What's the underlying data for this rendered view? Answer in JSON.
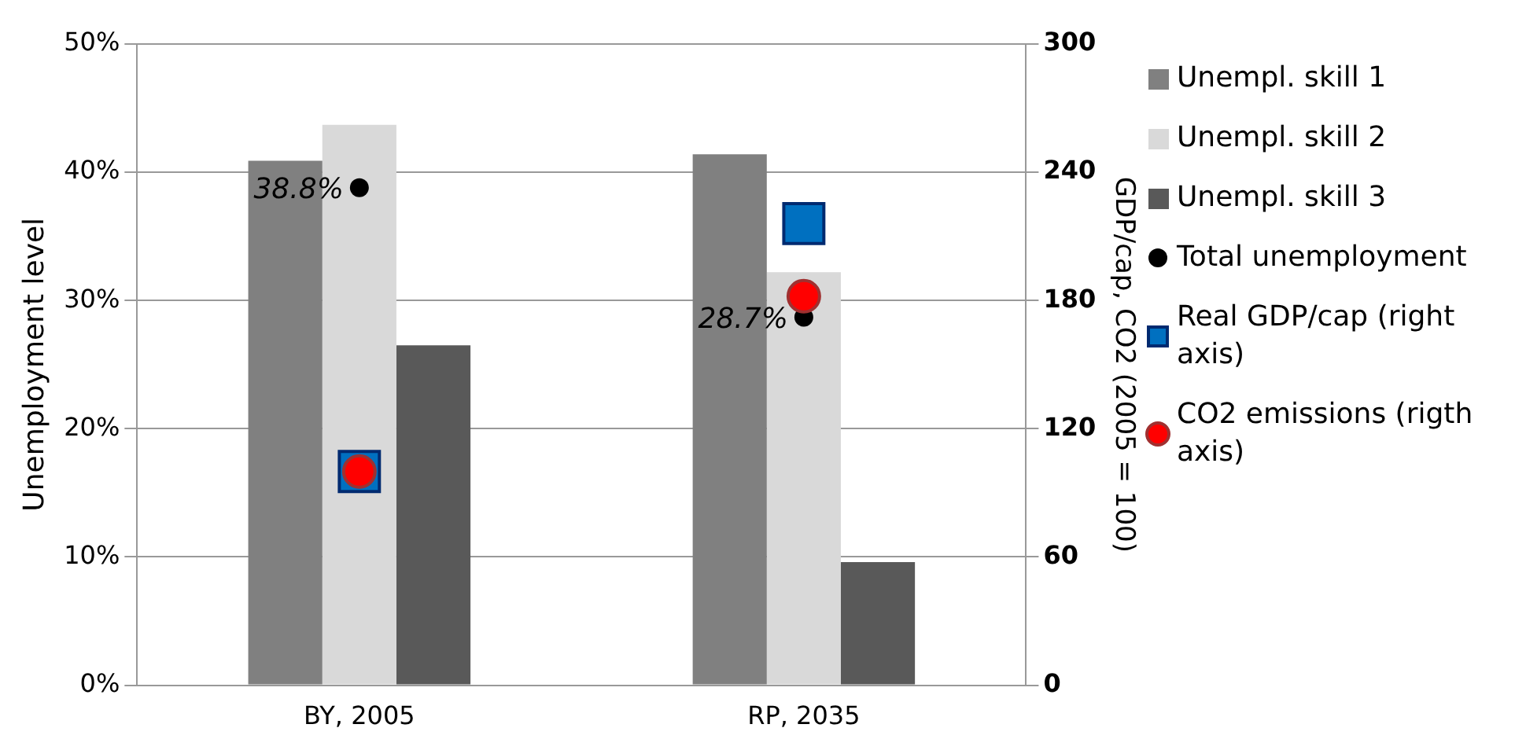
{
  "chart_data": {
    "type": "bar",
    "ylabel": "Unemployment level",
    "y2label": "GDP/cap, CO2 (2005 = 100)",
    "categories": [
      "BY, 2005",
      "RP, 2035"
    ],
    "series": [
      {
        "name": "Unempl. skill 1",
        "color": "#808080",
        "values": [
          40.9,
          41.4
        ]
      },
      {
        "name": "Unempl. skill 2",
        "color": "#d9d9d9",
        "values": [
          43.7,
          32.2
        ]
      },
      {
        "name": "Unempl. skill 3",
        "color": "#595959",
        "values": [
          26.5,
          9.6
        ]
      },
      {
        "name": "Total unemployment",
        "type": "scatter",
        "marker": "circle",
        "color": "#000000",
        "values": [
          38.8,
          28.7
        ],
        "value_labels": [
          "38.8%",
          "28.7%"
        ]
      },
      {
        "name": "Real GDP/cap (right axis)",
        "type": "scatter",
        "marker": "square",
        "axis": "y2",
        "color": "#0070c0",
        "values": [
          100,
          216
        ]
      },
      {
        "name": "CO2 emissions (rigth axis)",
        "type": "scatter",
        "marker": "circle",
        "axis": "y2",
        "color": "#ff0000",
        "values": [
          100,
          182
        ]
      }
    ],
    "ylim": [
      0,
      50
    ],
    "yticks": [
      {
        "value": 0,
        "label": "0%"
      },
      {
        "value": 10,
        "label": "10%"
      },
      {
        "value": 20,
        "label": "20%"
      },
      {
        "value": 30,
        "label": "30%"
      },
      {
        "value": 40,
        "label": "40%"
      },
      {
        "value": 50,
        "label": "50%"
      }
    ],
    "y2lim": [
      0,
      300
    ],
    "y2ticks": [
      0,
      60,
      120,
      180,
      240,
      300
    ],
    "grid": "y",
    "legend": "right"
  }
}
